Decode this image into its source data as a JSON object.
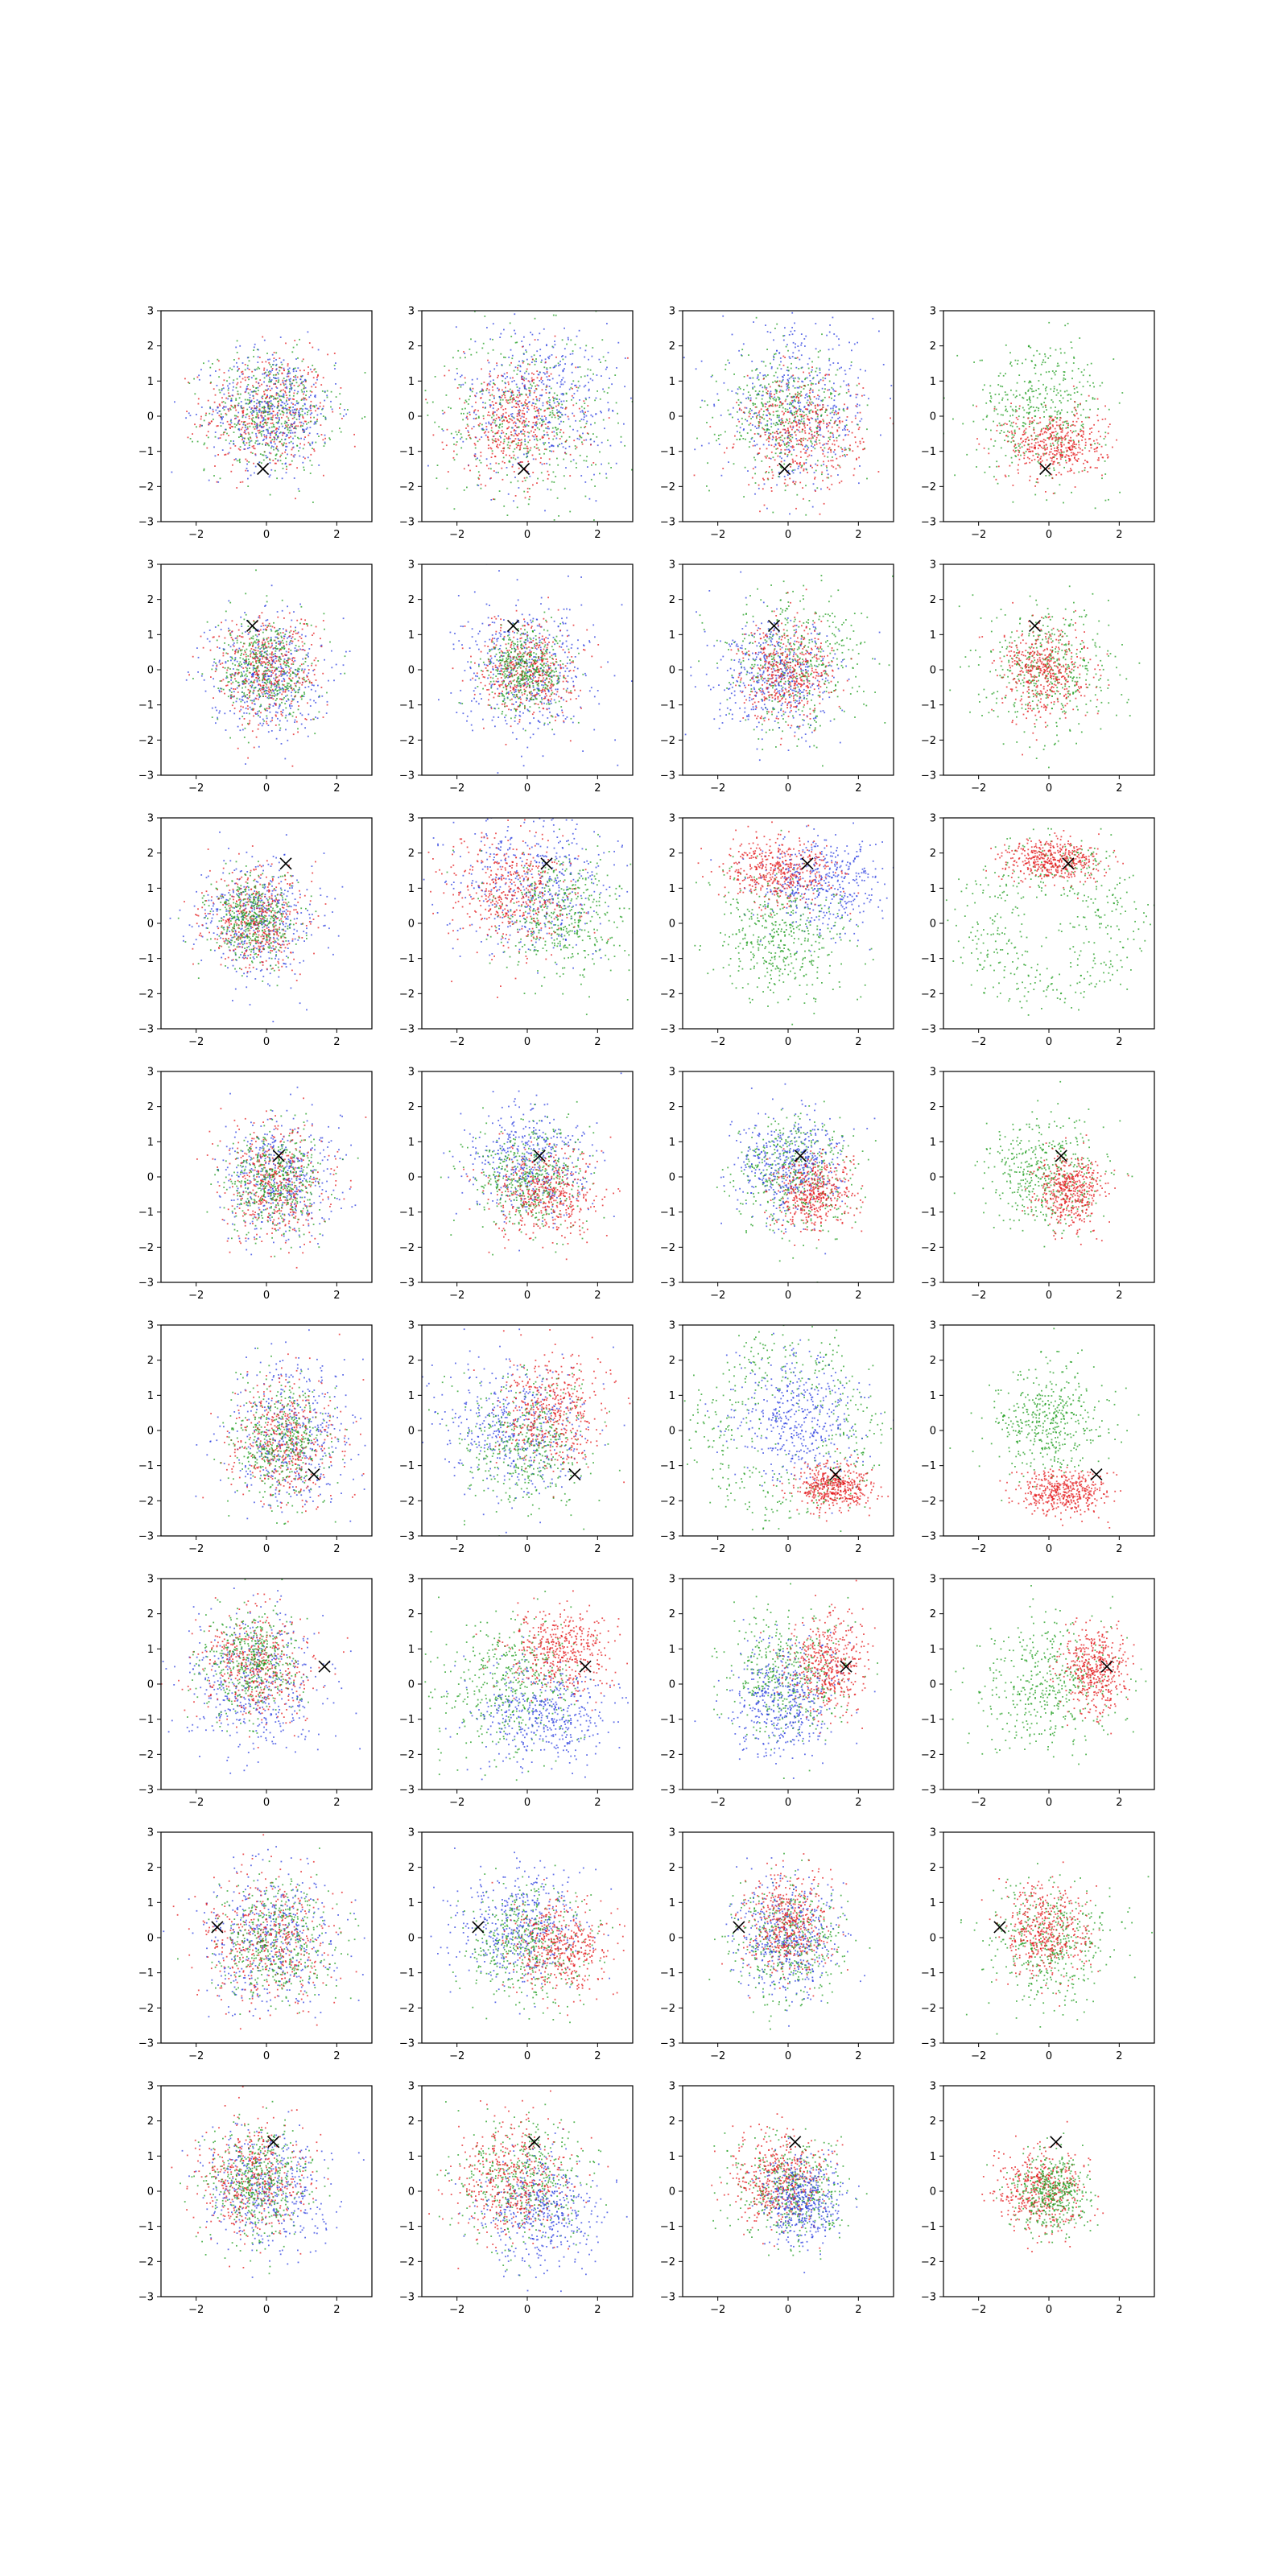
{
  "figure": {
    "title": "",
    "layout": {
      "rows": 8,
      "cols": 4
    },
    "colors": {
      "red": "#e41a1c",
      "green": "#1f9e1f",
      "blue": "#2b3fe0",
      "marker": "#000000",
      "axis": "#000000"
    }
  },
  "chart_data": {
    "type": "scatter",
    "title": "",
    "xlabel": "",
    "ylabel": "",
    "xlim": [
      -3,
      3
    ],
    "ylim": [
      -3,
      3
    ],
    "xticks": [
      -2,
      0,
      2
    ],
    "yticks": [
      -3,
      -2,
      -1,
      0,
      1,
      2,
      3
    ],
    "xtick_labels": [
      "−2",
      "0",
      "2"
    ],
    "ytick_labels": [
      "−3",
      "−2",
      "−1",
      "0",
      "1",
      "2",
      "3"
    ],
    "grid": false,
    "legend": "none",
    "series_colors": [
      "red",
      "green",
      "blue"
    ],
    "points_per_cloud": 450,
    "marker_shape": "x",
    "marker_points": [
      {
        "x": -0.1,
        "y": -1.5
      },
      {
        "x": -0.4,
        "y": 1.25
      },
      {
        "x": 0.55,
        "y": 1.7
      },
      {
        "x": 0.35,
        "y": 0.6
      },
      {
        "x": 1.35,
        "y": -1.25
      },
      {
        "x": 1.65,
        "y": 0.5
      },
      {
        "x": -1.4,
        "y": 0.3
      },
      {
        "x": 0.2,
        "y": 1.4
      }
    ],
    "panels": [
      [
        {
          "clouds": [
            {
              "color": "red",
              "cx": 0,
              "cy": 0.1,
              "sx": 0.9,
              "sy": 0.85
            },
            {
              "color": "green",
              "cx": 0.1,
              "cy": 0.1,
              "sx": 0.9,
              "sy": 0.85
            },
            {
              "color": "blue",
              "cx": 0.2,
              "cy": 0.2,
              "sx": 0.9,
              "sy": 0.85
            }
          ]
        },
        {
          "clouds": [
            {
              "color": "green",
              "cx": 0,
              "cy": 0,
              "sx": 1.3,
              "sy": 1.2
            },
            {
              "color": "blue",
              "cx": 0.4,
              "cy": 0.5,
              "sx": 1.2,
              "sy": 1.1
            },
            {
              "color": "red",
              "cx": -0.4,
              "cy": -0.2,
              "sx": 0.9,
              "sy": 0.85
            }
          ]
        },
        {
          "clouds": [
            {
              "color": "blue",
              "cx": 0.3,
              "cy": 0.3,
              "sx": 1.1,
              "sy": 1.1
            },
            {
              "color": "green",
              "cx": -0.1,
              "cy": 0.1,
              "sx": 0.9,
              "sy": 0.9
            },
            {
              "color": "red",
              "cx": 0.4,
              "cy": -0.5,
              "sx": 0.85,
              "sy": 0.8
            }
          ]
        },
        {
          "clouds": [
            {
              "color": "green",
              "cx": -0.2,
              "cy": 0.2,
              "sx": 0.95,
              "sy": 0.95
            },
            {
              "color": "red",
              "cx": 0.2,
              "cy": -0.8,
              "sx": 0.7,
              "sy": 0.5
            }
          ]
        }
      ],
      [
        {
          "clouds": [
            {
              "color": "blue",
              "cx": 0,
              "cy": -0.1,
              "sx": 0.8,
              "sy": 0.85
            },
            {
              "color": "red",
              "cx": 0,
              "cy": 0,
              "sx": 0.75,
              "sy": 0.8
            },
            {
              "color": "green",
              "cx": 0,
              "cy": 0,
              "sx": 0.7,
              "sy": 0.75
            }
          ]
        },
        {
          "clouds": [
            {
              "color": "blue",
              "cx": 0,
              "cy": 0,
              "sx": 0.95,
              "sy": 0.95
            },
            {
              "color": "red",
              "cx": 0,
              "cy": 0,
              "sx": 0.65,
              "sy": 0.65
            },
            {
              "color": "green",
              "cx": 0,
              "cy": 0,
              "sx": 0.6,
              "sy": 0.6
            }
          ]
        },
        {
          "clouds": [
            {
              "color": "green",
              "cx": 0.2,
              "cy": 0.2,
              "sx": 1.0,
              "sy": 1.0
            },
            {
              "color": "blue",
              "cx": -0.3,
              "cy": -0.3,
              "sx": 0.9,
              "sy": 0.8
            },
            {
              "color": "red",
              "cx": 0,
              "cy": 0,
              "sx": 0.65,
              "sy": 0.7
            }
          ]
        },
        {
          "clouds": [
            {
              "color": "green",
              "cx": 0,
              "cy": 0,
              "sx": 0.9,
              "sy": 0.9
            },
            {
              "color": "red",
              "cx": -0.1,
              "cy": 0,
              "sx": 0.6,
              "sy": 0.65
            }
          ]
        }
      ],
      [
        {
          "clouds": [
            {
              "color": "blue",
              "cx": -0.2,
              "cy": 0.1,
              "sx": 0.85,
              "sy": 0.85
            },
            {
              "color": "red",
              "cx": -0.3,
              "cy": 0.1,
              "sx": 0.7,
              "sy": 0.7
            },
            {
              "color": "green",
              "cx": -0.4,
              "cy": 0.1,
              "sx": 0.6,
              "sy": 0.6
            }
          ]
        },
        {
          "clouds": [
            {
              "color": "blue",
              "cx": 0.2,
              "cy": 1.2,
              "sx": 1.1,
              "sy": 1.0
            },
            {
              "color": "green",
              "cx": 1.0,
              "cy": 0.2,
              "sx": 0.9,
              "sy": 0.9
            },
            {
              "color": "red",
              "cx": -0.5,
              "cy": 0.8,
              "sx": 0.9,
              "sy": 0.85
            }
          ]
        },
        {
          "clouds": [
            {
              "color": "blue",
              "cx": 1.0,
              "cy": 1.1,
              "sx": 0.9,
              "sy": 0.7
            },
            {
              "color": "green",
              "cx": -0.2,
              "cy": -0.4,
              "sx": 1.0,
              "sy": 0.9
            },
            {
              "color": "red",
              "cx": -0.2,
              "cy": 1.5,
              "sx": 0.8,
              "sy": 0.45
            }
          ]
        },
        {
          "clouds": [
            {
              "color": "green",
              "cx": 0,
              "cy": 0,
              "sx": 1.75,
              "sy": 1.65,
              "ring": true
            },
            {
              "color": "red",
              "cx": 0.1,
              "cy": 1.8,
              "sx": 0.7,
              "sy": 0.3
            }
          ]
        }
      ],
      [
        {
          "clouds": [
            {
              "color": "blue",
              "cx": 0.4,
              "cy": 0,
              "sx": 0.85,
              "sy": 0.85
            },
            {
              "color": "red",
              "cx": 0.3,
              "cy": -0.2,
              "sx": 0.75,
              "sy": 0.8
            },
            {
              "color": "green",
              "cx": 0.2,
              "cy": -0.1,
              "sx": 0.7,
              "sy": 0.75
            }
          ]
        },
        {
          "clouds": [
            {
              "color": "blue",
              "cx": 0,
              "cy": 0.4,
              "sx": 0.85,
              "sy": 0.8
            },
            {
              "color": "green",
              "cx": 0,
              "cy": 0,
              "sx": 0.8,
              "sy": 0.75
            },
            {
              "color": "red",
              "cx": 0.5,
              "cy": -0.5,
              "sx": 0.75,
              "sy": 0.65
            }
          ]
        },
        {
          "clouds": [
            {
              "color": "green",
              "cx": 0.2,
              "cy": 0,
              "sx": 0.85,
              "sy": 0.85
            },
            {
              "color": "blue",
              "cx": 0,
              "cy": 0.3,
              "sx": 0.75,
              "sy": 0.75
            },
            {
              "color": "red",
              "cx": 0.7,
              "cy": -0.5,
              "sx": 0.55,
              "sy": 0.55
            }
          ]
        },
        {
          "clouds": [
            {
              "color": "green",
              "cx": -0.1,
              "cy": 0.1,
              "sx": 0.8,
              "sy": 0.8
            },
            {
              "color": "red",
              "cx": 0.6,
              "cy": -0.4,
              "sx": 0.45,
              "sy": 0.5
            }
          ]
        }
      ],
      [
        {
          "clouds": [
            {
              "color": "blue",
              "cx": 0.7,
              "cy": -0.1,
              "sx": 0.9,
              "sy": 1.0
            },
            {
              "color": "red",
              "cx": 0.5,
              "cy": -0.3,
              "sx": 0.8,
              "sy": 0.9
            },
            {
              "color": "green",
              "cx": 0.4,
              "cy": -0.3,
              "sx": 0.7,
              "sy": 0.8
            }
          ]
        },
        {
          "clouds": [
            {
              "color": "blue",
              "cx": -0.4,
              "cy": 0,
              "sx": 1.0,
              "sy": 0.95
            },
            {
              "color": "green",
              "cx": 0,
              "cy": -0.3,
              "sx": 0.9,
              "sy": 0.9
            },
            {
              "color": "red",
              "cx": 0.7,
              "cy": 0.5,
              "sx": 0.75,
              "sy": 0.8
            }
          ]
        },
        {
          "clouds": [
            {
              "color": "green",
              "cx": 0,
              "cy": 0,
              "sx": 1.8,
              "sy": 1.8,
              "ring": true
            },
            {
              "color": "blue",
              "cx": 0.3,
              "cy": 0.3,
              "sx": 0.9,
              "sy": 0.9
            },
            {
              "color": "red",
              "cx": 1.3,
              "cy": -1.6,
              "sx": 0.5,
              "sy": 0.35
            }
          ]
        },
        {
          "clouds": [
            {
              "color": "green",
              "cx": 0,
              "cy": 0.2,
              "sx": 0.75,
              "sy": 0.75
            },
            {
              "color": "red",
              "cx": 0.4,
              "cy": -1.8,
              "sx": 0.65,
              "sy": 0.3
            }
          ]
        }
      ],
      [
        {
          "clouds": [
            {
              "color": "blue",
              "cx": -0.2,
              "cy": 0,
              "sx": 1.0,
              "sy": 1.0
            },
            {
              "color": "red",
              "cx": -0.3,
              "cy": 0.5,
              "sx": 0.8,
              "sy": 0.8
            },
            {
              "color": "green",
              "cx": -0.4,
              "cy": 0.6,
              "sx": 0.7,
              "sy": 0.75
            }
          ]
        },
        {
          "clouds": [
            {
              "color": "green",
              "cx": -0.5,
              "cy": 0,
              "sx": 1.0,
              "sy": 1.0
            },
            {
              "color": "blue",
              "cx": 0.4,
              "cy": -0.9,
              "sx": 1.0,
              "sy": 0.7
            },
            {
              "color": "red",
              "cx": 1.0,
              "cy": 1.0,
              "sx": 0.7,
              "sy": 0.6
            }
          ]
        },
        {
          "clouds": [
            {
              "color": "green",
              "cx": 0,
              "cy": 0.3,
              "sx": 0.9,
              "sy": 0.9
            },
            {
              "color": "blue",
              "cx": -0.1,
              "cy": -0.5,
              "sx": 0.8,
              "sy": 0.8
            },
            {
              "color": "red",
              "cx": 1.1,
              "cy": 0.5,
              "sx": 0.55,
              "sy": 0.7
            }
          ]
        },
        {
          "clouds": [
            {
              "color": "green",
              "cx": 0,
              "cy": 0,
              "sx": 0.95,
              "sy": 0.95
            },
            {
              "color": "red",
              "cx": 1.3,
              "cy": 0.4,
              "sx": 0.45,
              "sy": 0.6
            }
          ]
        }
      ],
      [
        {
          "clouds": [
            {
              "color": "blue",
              "cx": 0.1,
              "cy": 0,
              "sx": 0.95,
              "sy": 0.95
            },
            {
              "color": "red",
              "cx": 0,
              "cy": 0,
              "sx": 0.9,
              "sy": 0.9
            },
            {
              "color": "green",
              "cx": 0.3,
              "cy": -0.1,
              "sx": 0.85,
              "sy": 0.85
            }
          ]
        },
        {
          "clouds": [
            {
              "color": "blue",
              "cx": -0.2,
              "cy": 0.4,
              "sx": 0.9,
              "sy": 0.8
            },
            {
              "color": "green",
              "cx": 0,
              "cy": -0.2,
              "sx": 0.85,
              "sy": 0.8
            },
            {
              "color": "red",
              "cx": 0.9,
              "cy": -0.3,
              "sx": 0.7,
              "sy": 0.65
            }
          ]
        },
        {
          "clouds": [
            {
              "color": "green",
              "cx": 0,
              "cy": -0.2,
              "sx": 0.85,
              "sy": 0.85
            },
            {
              "color": "blue",
              "cx": 0,
              "cy": 0,
              "sx": 0.7,
              "sy": 0.75
            },
            {
              "color": "red",
              "cx": 0,
              "cy": 0.3,
              "sx": 0.6,
              "sy": 0.7
            }
          ]
        },
        {
          "clouds": [
            {
              "color": "green",
              "cx": 0,
              "cy": -0.2,
              "sx": 0.9,
              "sy": 0.9
            },
            {
              "color": "red",
              "cx": -0.1,
              "cy": 0.2,
              "sx": 0.6,
              "sy": 0.65
            }
          ]
        }
      ],
      [
        {
          "clouds": [
            {
              "color": "blue",
              "cx": 0,
              "cy": 0,
              "sx": 0.9,
              "sy": 0.9
            },
            {
              "color": "red",
              "cx": -0.4,
              "cy": 0.3,
              "sx": 0.8,
              "sy": 0.85
            },
            {
              "color": "green",
              "cx": -0.3,
              "cy": 0.2,
              "sx": 0.75,
              "sy": 0.8
            }
          ]
        },
        {
          "clouds": [
            {
              "color": "green",
              "cx": -0.1,
              "cy": 0.3,
              "sx": 0.9,
              "sy": 0.9
            },
            {
              "color": "blue",
              "cx": 0.4,
              "cy": -0.6,
              "sx": 0.9,
              "sy": 0.8
            },
            {
              "color": "red",
              "cx": -0.4,
              "cy": 0.3,
              "sx": 0.8,
              "sy": 0.8
            }
          ]
        },
        {
          "clouds": [
            {
              "color": "green",
              "cx": 0,
              "cy": 0,
              "sx": 0.75,
              "sy": 0.75
            },
            {
              "color": "red",
              "cx": -0.3,
              "cy": 0.3,
              "sx": 0.65,
              "sy": 0.65
            },
            {
              "color": "blue",
              "cx": 0.4,
              "cy": -0.3,
              "sx": 0.55,
              "sy": 0.6
            }
          ]
        },
        {
          "clouds": [
            {
              "color": "red",
              "cx": -0.2,
              "cy": 0,
              "sx": 0.6,
              "sy": 0.6
            },
            {
              "color": "green",
              "cx": 0.1,
              "cy": -0.1,
              "sx": 0.5,
              "sy": 0.55
            }
          ]
        }
      ]
    ]
  }
}
